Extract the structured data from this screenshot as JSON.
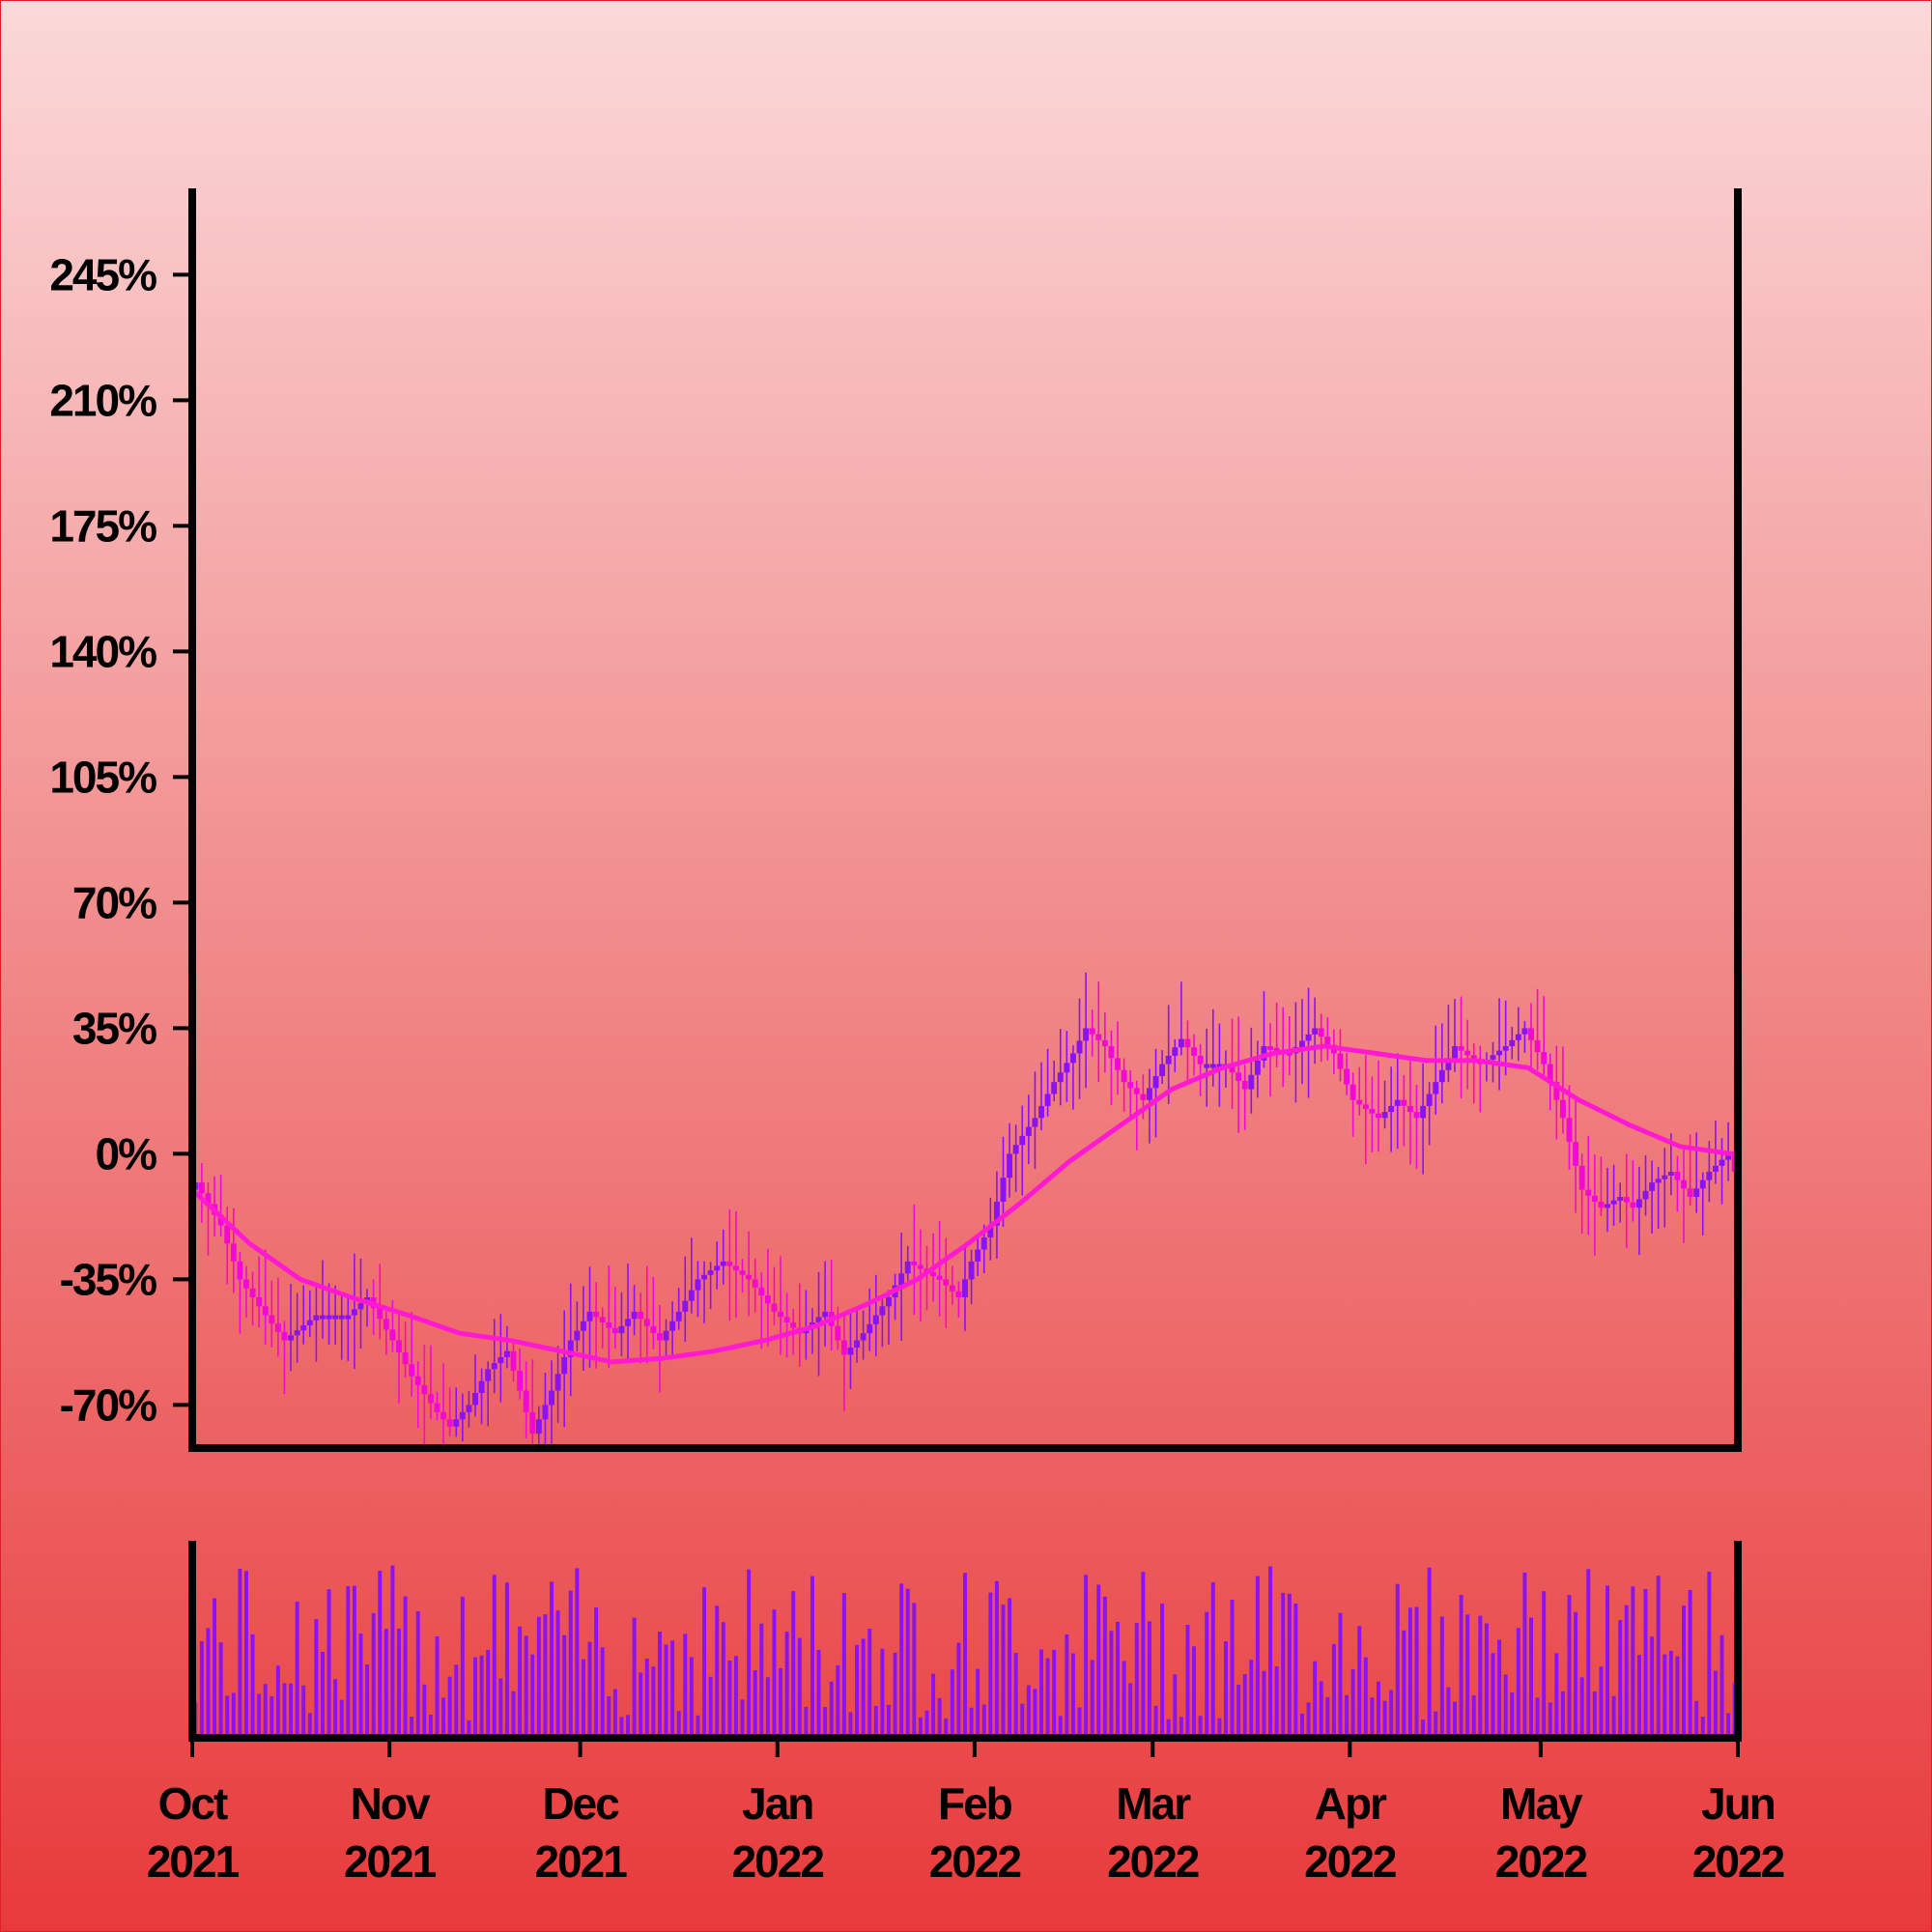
{
  "colors": {
    "background_top": "#fbd9da",
    "background_bottom": "#e83a3c",
    "axis": "#000000",
    "up_candle": "#8b12f4",
    "down_candle": "#f20ad4",
    "moving_average": "#ff1ad1",
    "volume": "#8b12f4"
  },
  "chart_data": {
    "type": "candlestick",
    "y_axis": {
      "format": "percent",
      "ticks": [
        "-70%",
        "-35%",
        "0%",
        "35%",
        "70%",
        "105%",
        "140%",
        "175%",
        "210%",
        "245%"
      ],
      "tick_values": [
        -70,
        -35,
        0,
        35,
        70,
        105,
        140,
        175,
        210,
        245
      ],
      "range": [
        -82,
        268
      ]
    },
    "x_axis": {
      "range_start": "2021-10-01",
      "range_end": "2022-06-01",
      "ticks": [
        {
          "date": "2021-10-01",
          "month": "Oct",
          "year": "2021"
        },
        {
          "date": "2021-11-01",
          "month": "Nov",
          "year": "2021"
        },
        {
          "date": "2021-12-01",
          "month": "Dec",
          "year": "2021"
        },
        {
          "date": "2022-01-01",
          "month": "Jan",
          "year": "2022"
        },
        {
          "date": "2022-02-01",
          "month": "Feb",
          "year": "2022"
        },
        {
          "date": "2022-03-01",
          "month": "Mar",
          "year": "2022"
        },
        {
          "date": "2022-04-01",
          "month": "Apr",
          "year": "2022"
        },
        {
          "date": "2022-05-01",
          "month": "May",
          "year": "2022"
        },
        {
          "date": "2022-06-01",
          "month": "Jun",
          "year": "2022"
        }
      ]
    },
    "close_path": [
      [
        "2021-10-01",
        -8
      ],
      [
        "2021-10-05",
        -20
      ],
      [
        "2021-10-08",
        -35
      ],
      [
        "2021-10-12",
        -45
      ],
      [
        "2021-10-15",
        -52
      ],
      [
        "2021-10-20",
        -45
      ],
      [
        "2021-10-25",
        -45
      ],
      [
        "2021-10-28",
        -40
      ],
      [
        "2021-11-01",
        -52
      ],
      [
        "2021-11-04",
        -62
      ],
      [
        "2021-11-08",
        -72
      ],
      [
        "2021-11-10",
        -76
      ],
      [
        "2021-11-13",
        -70
      ],
      [
        "2021-11-16",
        -60
      ],
      [
        "2021-11-19",
        -55
      ],
      [
        "2021-11-21",
        -66
      ],
      [
        "2021-11-23",
        -78
      ],
      [
        "2021-11-26",
        -66
      ],
      [
        "2021-11-29",
        -52
      ],
      [
        "2021-12-02",
        -44
      ],
      [
        "2021-12-06",
        -50
      ],
      [
        "2021-12-09",
        -44
      ],
      [
        "2021-12-13",
        -52
      ],
      [
        "2021-12-16",
        -44
      ],
      [
        "2021-12-19",
        -35
      ],
      [
        "2021-12-23",
        -30
      ],
      [
        "2021-12-27",
        -35
      ],
      [
        "2021-12-31",
        -44
      ],
      [
        "2022-01-04",
        -50
      ],
      [
        "2022-01-08",
        -44
      ],
      [
        "2022-01-11",
        -56
      ],
      [
        "2022-01-14",
        -50
      ],
      [
        "2022-01-18",
        -40
      ],
      [
        "2022-01-21",
        -30
      ],
      [
        "2022-01-26",
        -35
      ],
      [
        "2022-01-29",
        -40
      ],
      [
        "2022-01-31",
        -30
      ],
      [
        "2022-02-03",
        -20
      ],
      [
        "2022-02-06",
        0
      ],
      [
        "2022-02-10",
        10
      ],
      [
        "2022-02-13",
        20
      ],
      [
        "2022-02-16",
        28
      ],
      [
        "2022-02-18",
        35
      ],
      [
        "2022-02-21",
        30
      ],
      [
        "2022-02-24",
        20
      ],
      [
        "2022-02-27",
        15
      ],
      [
        "2022-03-02",
        25
      ],
      [
        "2022-03-05",
        32
      ],
      [
        "2022-03-08",
        25
      ],
      [
        "2022-03-12",
        25
      ],
      [
        "2022-03-15",
        18
      ],
      [
        "2022-03-18",
        30
      ],
      [
        "2022-03-22",
        28
      ],
      [
        "2022-03-26",
        35
      ],
      [
        "2022-03-29",
        28
      ],
      [
        "2022-04-01",
        15
      ],
      [
        "2022-04-05",
        10
      ],
      [
        "2022-04-08",
        15
      ],
      [
        "2022-04-11",
        10
      ],
      [
        "2022-04-14",
        20
      ],
      [
        "2022-04-17",
        30
      ],
      [
        "2022-04-21",
        25
      ],
      [
        "2022-04-25",
        30
      ],
      [
        "2022-04-28",
        35
      ],
      [
        "2022-05-01",
        25
      ],
      [
        "2022-05-04",
        10
      ],
      [
        "2022-05-07",
        -10
      ],
      [
        "2022-05-10",
        -15
      ],
      [
        "2022-05-13",
        -12
      ],
      [
        "2022-05-15",
        -15
      ],
      [
        "2022-05-18",
        -8
      ],
      [
        "2022-05-21",
        -5
      ],
      [
        "2022-05-24",
        -12
      ],
      [
        "2022-05-27",
        -5
      ],
      [
        "2022-05-30",
        0
      ],
      [
        "2022-06-01",
        -10
      ]
    ],
    "moving_average": [
      [
        "2021-10-01",
        -10
      ],
      [
        "2021-10-10",
        -25
      ],
      [
        "2021-10-18",
        -35
      ],
      [
        "2021-10-26",
        -40
      ],
      [
        "2021-11-04",
        -45
      ],
      [
        "2021-11-12",
        -50
      ],
      [
        "2021-11-20",
        -52
      ],
      [
        "2021-11-28",
        -55
      ],
      [
        "2021-12-06",
        -58
      ],
      [
        "2021-12-14",
        -57
      ],
      [
        "2021-12-22",
        -55
      ],
      [
        "2021-12-30",
        -52
      ],
      [
        "2022-01-07",
        -48
      ],
      [
        "2022-01-15",
        -42
      ],
      [
        "2022-01-23",
        -35
      ],
      [
        "2022-01-31",
        -25
      ],
      [
        "2022-02-08",
        -14
      ],
      [
        "2022-02-16",
        -2
      ],
      [
        "2022-02-24",
        8
      ],
      [
        "2022-03-04",
        18
      ],
      [
        "2022-03-12",
        24
      ],
      [
        "2022-03-20",
        28
      ],
      [
        "2022-03-28",
        30
      ],
      [
        "2022-04-05",
        28
      ],
      [
        "2022-04-13",
        26
      ],
      [
        "2022-04-21",
        26
      ],
      [
        "2022-04-29",
        24
      ],
      [
        "2022-05-07",
        15
      ],
      [
        "2022-05-15",
        8
      ],
      [
        "2022-05-23",
        2
      ],
      [
        "2022-05-31",
        0
      ],
      [
        "2022-06-01",
        0
      ]
    ],
    "volume_range": [
      0,
      100
    ]
  }
}
